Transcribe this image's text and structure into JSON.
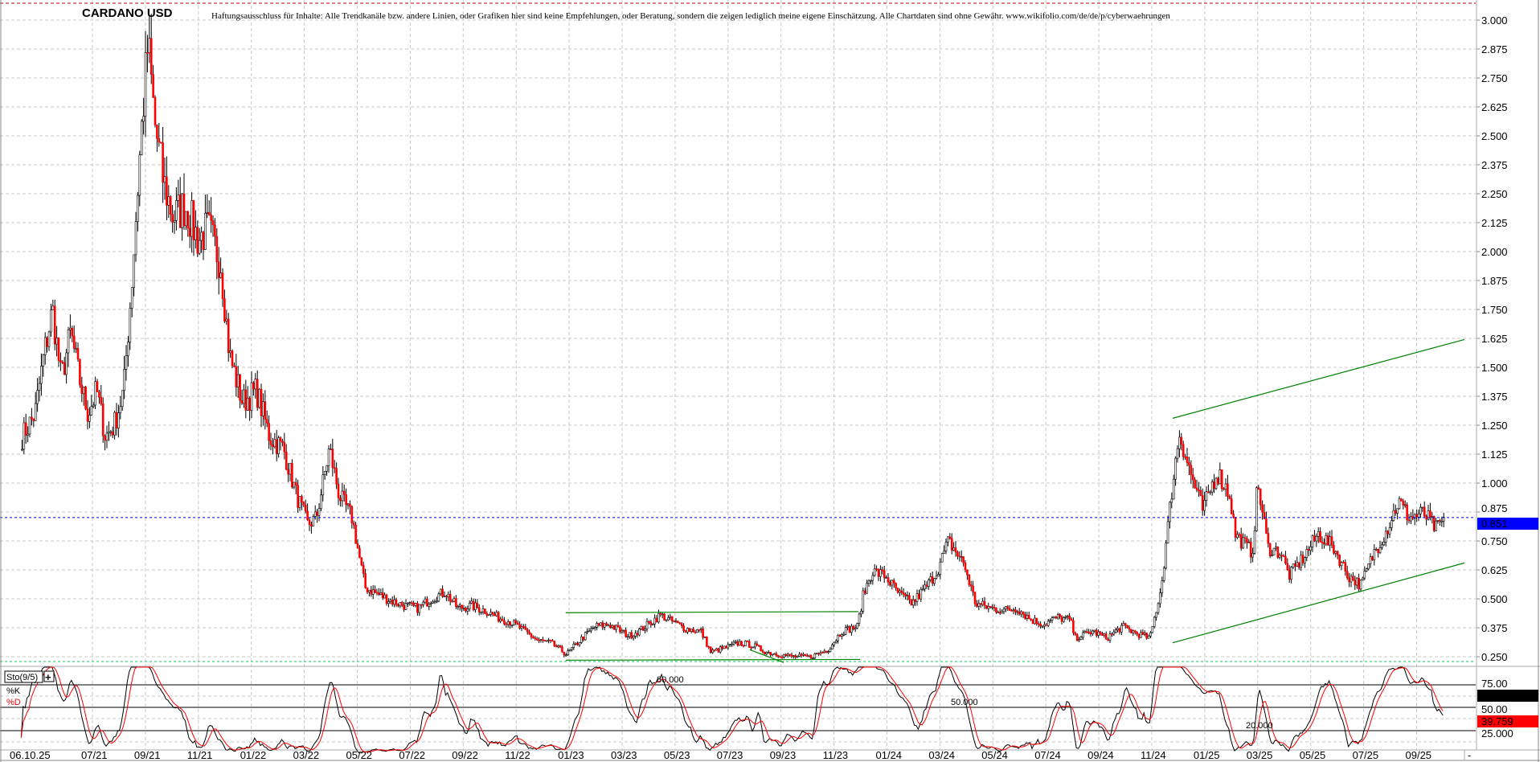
{
  "chart_data": {
    "type": "candlestick",
    "title": "CARDANO USD",
    "disclaimer": "Haftungsausschluss für Inhalte: Alle Trendkanäle bzw. andere Linien, oder Grafiken hier sind keine Empfehlungen, oder Beratung, sondern die zeigen lediglich meine eigene Einschätzung. Alle Chartdaten sind ohne Gewähr.  www.wikifolio.com/de/de/p/cyberwaehrungen",
    "y_ticks": [
      "0.250",
      "0.375",
      "0.500",
      "0.625",
      "0.750",
      "0.875",
      "1.000",
      "1.125",
      "1.250",
      "1.375",
      "1.500",
      "1.625",
      "1.750",
      "1.875",
      "2.000",
      "2.125",
      "2.250",
      "2.375",
      "2.500",
      "2.625",
      "2.750",
      "2.875",
      "3.000"
    ],
    "ylim": [
      0.22,
      3.1
    ],
    "x_ticks": [
      "06.10.25",
      "07/21",
      "09/21",
      "11/21",
      "01/22",
      "03/22",
      "05/22",
      "07/22",
      "09/22",
      "11/22",
      "01/23",
      "03/23",
      "05/23",
      "07/23",
      "09/23",
      "11/23",
      "01/24",
      "03/24",
      "05/24",
      "07/24",
      "09/24",
      "11/24",
      "01/25",
      "03/25",
      "05/25",
      "07/25",
      "09/25"
    ],
    "last_price": "0.851",
    "grid": true,
    "colors": {
      "down": "#ff0000",
      "up": "#ffffff",
      "outline": "#000000",
      "trend": "#008000",
      "last_line": "#0000ff",
      "last_label_bg": "#0000ff"
    },
    "closes": [
      [
        "2021-04-10",
        1.2
      ],
      [
        "2021-04-25",
        1.3
      ],
      [
        "2021-05-05",
        1.55
      ],
      [
        "2021-05-15",
        1.75
      ],
      [
        "2021-05-25",
        1.45
      ],
      [
        "2021-06-05",
        1.65
      ],
      [
        "2021-06-15",
        1.45
      ],
      [
        "2021-06-25",
        1.3
      ],
      [
        "2021-07-05",
        1.4
      ],
      [
        "2021-07-15",
        1.2
      ],
      [
        "2021-07-25",
        1.25
      ],
      [
        "2021-08-05",
        1.4
      ],
      [
        "2021-08-15",
        1.9
      ],
      [
        "2021-08-25",
        2.5
      ],
      [
        "2021-09-02",
        2.9
      ],
      [
        "2021-09-10",
        2.55
      ],
      [
        "2021-09-20",
        2.3
      ],
      [
        "2021-10-01",
        2.15
      ],
      [
        "2021-10-15",
        2.2
      ],
      [
        "2021-10-30",
        2.05
      ],
      [
        "2021-11-10",
        2.1
      ],
      [
        "2021-11-25",
        1.95
      ],
      [
        "2021-12-05",
        1.55
      ],
      [
        "2021-12-20",
        1.35
      ],
      [
        "2022-01-05",
        1.4
      ],
      [
        "2022-01-20",
        1.2
      ],
      [
        "2022-02-05",
        1.15
      ],
      [
        "2022-02-20",
        0.95
      ],
      [
        "2022-03-05",
        0.82
      ],
      [
        "2022-03-15",
        0.85
      ],
      [
        "2022-03-30",
        1.15
      ],
      [
        "2022-04-10",
        0.95
      ],
      [
        "2022-04-25",
        0.85
      ],
      [
        "2022-05-10",
        0.55
      ],
      [
        "2022-05-25",
        0.52
      ],
      [
        "2022-06-10",
        0.49
      ],
      [
        "2022-06-25",
        0.47
      ],
      [
        "2022-07-10",
        0.46
      ],
      [
        "2022-07-25",
        0.5
      ],
      [
        "2022-08-10",
        0.53
      ],
      [
        "2022-08-25",
        0.46
      ],
      [
        "2022-09-10",
        0.47
      ],
      [
        "2022-09-25",
        0.45
      ],
      [
        "2022-10-10",
        0.42
      ],
      [
        "2022-10-25",
        0.4
      ],
      [
        "2022-11-10",
        0.36
      ],
      [
        "2022-11-25",
        0.32
      ],
      [
        "2022-12-10",
        0.31
      ],
      [
        "2022-12-28",
        0.26
      ],
      [
        "2023-01-15",
        0.33
      ],
      [
        "2023-01-30",
        0.38
      ],
      [
        "2023-02-15",
        0.39
      ],
      [
        "2023-03-10",
        0.34
      ],
      [
        "2023-03-25",
        0.37
      ],
      [
        "2023-04-15",
        0.43
      ],
      [
        "2023-04-30",
        0.4
      ],
      [
        "2023-05-15",
        0.37
      ],
      [
        "2023-06-01",
        0.36
      ],
      [
        "2023-06-12",
        0.27
      ],
      [
        "2023-06-30",
        0.29
      ],
      [
        "2023-07-15",
        0.31
      ],
      [
        "2023-07-30",
        0.3
      ],
      [
        "2023-08-15",
        0.27
      ],
      [
        "2023-08-30",
        0.26
      ],
      [
        "2023-09-15",
        0.25
      ],
      [
        "2023-10-05",
        0.25
      ],
      [
        "2023-10-25",
        0.28
      ],
      [
        "2023-11-10",
        0.36
      ],
      [
        "2023-11-28",
        0.38
      ],
      [
        "2023-12-05",
        0.52
      ],
      [
        "2023-12-15",
        0.62
      ],
      [
        "2023-12-30",
        0.6
      ],
      [
        "2024-01-15",
        0.52
      ],
      [
        "2024-01-30",
        0.48
      ],
      [
        "2024-02-15",
        0.55
      ],
      [
        "2024-02-28",
        0.62
      ],
      [
        "2024-03-12",
        0.75
      ],
      [
        "2024-03-30",
        0.65
      ],
      [
        "2024-04-12",
        0.48
      ],
      [
        "2024-04-30",
        0.46
      ],
      [
        "2024-05-15",
        0.45
      ],
      [
        "2024-05-30",
        0.46
      ],
      [
        "2024-06-15",
        0.41
      ],
      [
        "2024-06-30",
        0.39
      ],
      [
        "2024-07-15",
        0.42
      ],
      [
        "2024-07-30",
        0.41
      ],
      [
        "2024-08-05",
        0.33
      ],
      [
        "2024-08-25",
        0.36
      ],
      [
        "2024-09-10",
        0.33
      ],
      [
        "2024-09-28",
        0.38
      ],
      [
        "2024-10-15",
        0.35
      ],
      [
        "2024-10-30",
        0.33
      ],
      [
        "2024-11-12",
        0.55
      ],
      [
        "2024-11-25",
        1.0
      ],
      [
        "2024-12-03",
        1.22
      ],
      [
        "2024-12-15",
        1.05
      ],
      [
        "2024-12-30",
        0.88
      ],
      [
        "2025-01-15",
        1.05
      ],
      [
        "2025-01-30",
        0.95
      ],
      [
        "2025-02-05",
        0.78
      ],
      [
        "2025-02-25",
        0.7
      ],
      [
        "2025-03-03",
        1.0
      ],
      [
        "2025-03-15",
        0.72
      ],
      [
        "2025-03-30",
        0.7
      ],
      [
        "2025-04-08",
        0.6
      ],
      [
        "2025-04-25",
        0.68
      ],
      [
        "2025-05-12",
        0.78
      ],
      [
        "2025-05-30",
        0.72
      ],
      [
        "2025-06-15",
        0.6
      ],
      [
        "2025-06-30",
        0.56
      ],
      [
        "2025-07-15",
        0.7
      ],
      [
        "2025-07-30",
        0.8
      ],
      [
        "2025-08-12",
        0.92
      ],
      [
        "2025-08-25",
        0.85
      ],
      [
        "2025-09-10",
        0.87
      ],
      [
        "2025-09-25",
        0.8
      ],
      [
        "2025-10-05",
        0.851
      ]
    ],
    "trend_lines": [
      {
        "from": [
          "2024-11-26",
          1.28
        ],
        "to": [
          "2025-10-28",
          1.62
        ]
      },
      {
        "from": [
          "2024-11-26",
          0.31
        ],
        "to": [
          "2025-10-28",
          0.655
        ]
      },
      {
        "from": [
          "2022-12-28",
          0.44
        ],
        "to": [
          "2023-11-30",
          0.445
        ]
      },
      {
        "from": [
          "2022-12-28",
          0.235
        ],
        "to": [
          "2023-12-02",
          0.238
        ]
      },
      {
        "from": [
          "2023-07-28",
          0.28
        ],
        "to": [
          "2023-09-05",
          0.225
        ]
      }
    ],
    "stochastic": {
      "label": "Sto(9/5)",
      "k_label": "%K",
      "d_label": "%D",
      "levels": [
        "80.000",
        "50.000",
        "20.000"
      ],
      "ticks": [
        "75.00",
        "50.00",
        "25.000"
      ],
      "k_value": "63.06",
      "d_value": "39.759",
      "colors": {
        "k": "#000000",
        "d": "#ff0000"
      }
    },
    "axis_corner": "-"
  }
}
